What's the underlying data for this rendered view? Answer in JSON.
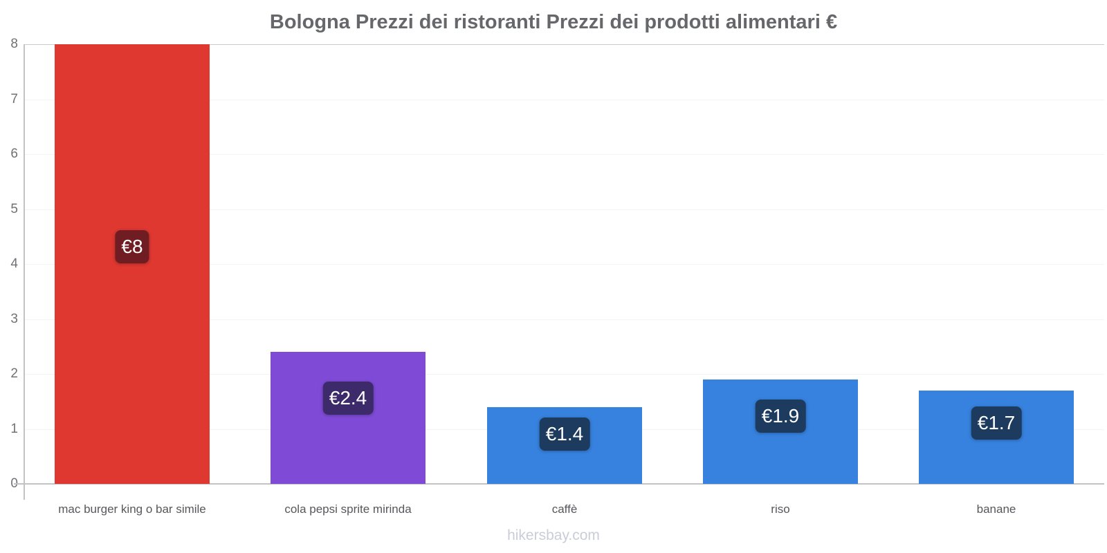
{
  "chart_data": {
    "type": "bar",
    "title": "Bologna Prezzi dei ristoranti Prezzi dei prodotti alimentari €",
    "categories": [
      "mac burger king o bar simile",
      "cola pepsi sprite mirinda",
      "caffè",
      "riso",
      "banane"
    ],
    "values": [
      8,
      2.4,
      1.4,
      1.9,
      1.7
    ],
    "value_labels": [
      "€8",
      "€2.4",
      "€1.4",
      "€1.9",
      "€1.7"
    ],
    "bar_colors": [
      "#de3831",
      "#7f4bd6",
      "#3682de",
      "#3682de",
      "#3682de"
    ],
    "label_bg_colors": [
      "#6f1d23",
      "#3d2a6b",
      "#1d3b5e",
      "#1d3b5e",
      "#1d3b5e"
    ],
    "xlabel": "",
    "ylabel": "",
    "ylim": [
      0,
      8
    ],
    "yticks": [
      0,
      1,
      2,
      3,
      4,
      5,
      6,
      7,
      8
    ],
    "grid": true,
    "legend": false,
    "currency": "€"
  },
  "footer": {
    "text": "hikersbay.com"
  }
}
